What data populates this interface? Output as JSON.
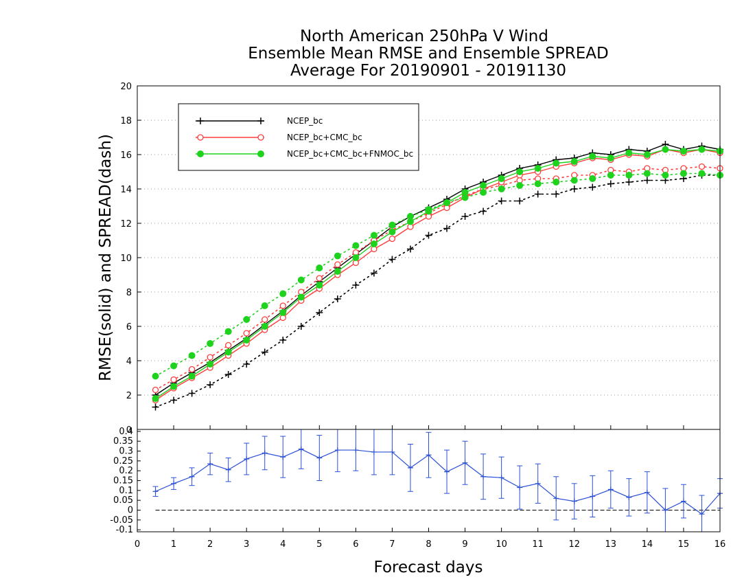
{
  "chart_data": [
    {
      "type": "line",
      "title_lines": [
        "North American 250hPa V Wind",
        "Ensemble Mean RMSE and Ensemble SPREAD",
        "Average For 20190901 - 20191130"
      ],
      "ylabel": "RMSE(solid) and SPREAD(dash)",
      "xlim": [
        0,
        16
      ],
      "ylim": [
        0,
        20
      ],
      "yticks": [
        0,
        2,
        4,
        6,
        8,
        10,
        12,
        14,
        16,
        18,
        20
      ],
      "grid": true,
      "legend_placement": "top-left",
      "x": [
        0.5,
        1,
        1.5,
        2,
        2.5,
        3,
        3.5,
        4,
        4.5,
        5,
        5.5,
        6,
        6.5,
        7,
        7.5,
        8,
        8.5,
        9,
        9.5,
        10,
        10.5,
        11,
        11.5,
        12,
        12.5,
        13,
        13.5,
        14,
        14.5,
        15,
        15.5,
        16
      ],
      "series": [
        {
          "name": "NCEP_bc",
          "color": "#000000",
          "marker": "plus",
          "rmse": [
            2.0,
            2.7,
            3.3,
            3.9,
            4.6,
            5.3,
            6.1,
            6.9,
            7.8,
            8.6,
            9.4,
            10.2,
            11.0,
            11.8,
            12.4,
            12.9,
            13.4,
            14.0,
            14.4,
            14.8,
            15.2,
            15.4,
            15.7,
            15.8,
            16.1,
            16.0,
            16.3,
            16.2,
            16.6,
            16.3,
            16.5,
            16.3
          ],
          "spread": [
            1.3,
            1.7,
            2.1,
            2.6,
            3.2,
            3.8,
            4.5,
            5.2,
            6.0,
            6.8,
            7.6,
            8.4,
            9.1,
            9.9,
            10.5,
            11.3,
            11.7,
            12.4,
            12.7,
            13.3,
            13.3,
            13.7,
            13.7,
            14.0,
            14.1,
            14.3,
            14.4,
            14.5,
            14.5,
            14.6,
            14.8,
            14.8
          ]
        },
        {
          "name": "NCEP_bc+CMC_bc",
          "color": "#ff3c3c",
          "marker": "open-circle",
          "rmse": [
            1.7,
            2.4,
            3.0,
            3.6,
            4.3,
            5.0,
            5.8,
            6.5,
            7.5,
            8.2,
            9.0,
            9.7,
            10.5,
            11.1,
            11.8,
            12.4,
            12.9,
            13.5,
            14.0,
            14.4,
            14.8,
            15.0,
            15.3,
            15.5,
            15.8,
            15.7,
            16.0,
            15.9,
            16.3,
            16.1,
            16.3,
            16.1
          ],
          "spread": [
            2.3,
            2.9,
            3.5,
            4.2,
            4.9,
            5.6,
            6.4,
            7.2,
            8.0,
            8.8,
            9.6,
            10.3,
            11.0,
            11.6,
            12.1,
            12.6,
            13.1,
            13.6,
            14.0,
            14.2,
            14.5,
            14.6,
            14.6,
            14.8,
            14.8,
            15.1,
            15.0,
            15.2,
            15.1,
            15.2,
            15.3,
            15.2
          ]
        },
        {
          "name": "NCEP_bc+CMC_bc+FNMOC_bc",
          "color": "#1ed21e",
          "marker": "filled-circle",
          "rmse": [
            1.8,
            2.5,
            3.1,
            3.8,
            4.5,
            5.2,
            6.0,
            6.8,
            7.7,
            8.4,
            9.2,
            10.0,
            10.8,
            11.5,
            12.1,
            12.7,
            13.2,
            13.8,
            14.2,
            14.6,
            15.0,
            15.2,
            15.5,
            15.6,
            15.9,
            15.8,
            16.1,
            16.0,
            16.3,
            16.2,
            16.3,
            16.2
          ],
          "spread": [
            3.1,
            3.7,
            4.3,
            5.0,
            5.7,
            6.4,
            7.2,
            7.9,
            8.7,
            9.4,
            10.1,
            10.7,
            11.3,
            11.9,
            12.4,
            12.8,
            13.2,
            13.5,
            13.8,
            14.0,
            14.2,
            14.3,
            14.4,
            14.5,
            14.6,
            14.8,
            14.8,
            14.9,
            14.8,
            14.9,
            14.9,
            14.8
          ]
        }
      ]
    },
    {
      "type": "line-errorbar",
      "xlabel": "Forecast days",
      "xlim": [
        0,
        16
      ],
      "xticks": [
        0,
        1,
        2,
        3,
        4,
        5,
        6,
        7,
        8,
        9,
        10,
        11,
        12,
        13,
        14,
        15,
        16
      ],
      "ylim": [
        -0.11,
        0.41
      ],
      "yticks": [
        -0.1,
        -0.05,
        0,
        0.05,
        0.1,
        0.15,
        0.2,
        0.25,
        0.3,
        0.35,
        0.4
      ],
      "ytick_labels": [
        "-0.1",
        "-0.05",
        "0",
        "0.05",
        "0.1",
        "0.15",
        "0.2",
        "0.25",
        "0.3",
        "0.35",
        "0.4"
      ],
      "zero_line": "dashed",
      "color": "#2a4fd6",
      "x": [
        0.5,
        1,
        1.5,
        2,
        2.5,
        3,
        3.5,
        4,
        4.5,
        5,
        5.5,
        6,
        6.5,
        7,
        7.5,
        8,
        8.5,
        9,
        9.5,
        10,
        10.5,
        11,
        11.5,
        12,
        12.5,
        13,
        13.5,
        14,
        14.5,
        15,
        15.5,
        16
      ],
      "values": [
        0.095,
        0.135,
        0.17,
        0.235,
        0.205,
        0.26,
        0.29,
        0.27,
        0.31,
        0.265,
        0.305,
        0.305,
        0.295,
        0.295,
        0.215,
        0.28,
        0.195,
        0.24,
        0.17,
        0.165,
        0.115,
        0.135,
        0.06,
        0.045,
        0.07,
        0.105,
        0.065,
        0.09,
        0.0,
        0.045,
        -0.02,
        0.085
      ],
      "error": [
        0.025,
        0.03,
        0.045,
        0.055,
        0.06,
        0.08,
        0.085,
        0.105,
        0.1,
        0.115,
        0.11,
        0.105,
        0.115,
        0.115,
        0.12,
        0.115,
        0.11,
        0.11,
        0.115,
        0.105,
        0.11,
        0.1,
        0.11,
        0.09,
        0.105,
        0.095,
        0.095,
        0.105,
        0.11,
        0.085,
        0.095,
        0.075
      ]
    }
  ]
}
